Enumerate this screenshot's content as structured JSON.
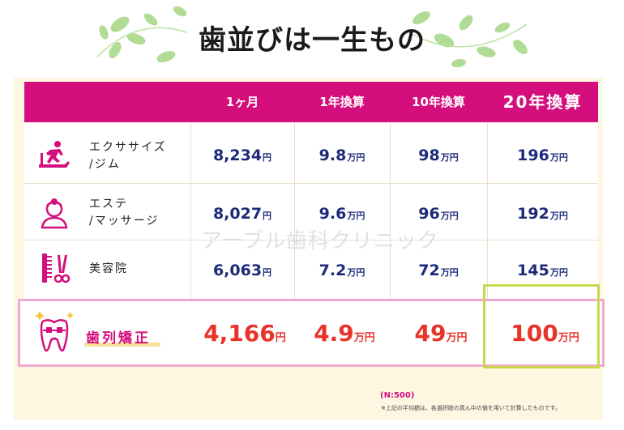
{
  "title": "歯並びは一生もの",
  "header": {
    "columns": [
      "1ヶ月",
      "1年換算",
      "10年換算",
      "20年換算"
    ]
  },
  "rows": [
    {
      "label_line1": "エクササイズ",
      "label_line2": "/ジム",
      "icon": "treadmill-icon",
      "cells": [
        {
          "num": "8,234",
          "unit": "円"
        },
        {
          "num": "9.8",
          "unit": "万円"
        },
        {
          "num": "98",
          "unit": "万円"
        },
        {
          "num": "196",
          "unit": "万円"
        }
      ]
    },
    {
      "label_line1": "エステ",
      "label_line2": "/マッサージ",
      "icon": "face-spa-icon",
      "cells": [
        {
          "num": "8,027",
          "unit": "円"
        },
        {
          "num": "9.6",
          "unit": "万円"
        },
        {
          "num": "96",
          "unit": "万円"
        },
        {
          "num": "192",
          "unit": "万円"
        }
      ]
    },
    {
      "label_line1": "美容院",
      "label_line2": "",
      "icon": "comb-scissors-icon",
      "cells": [
        {
          "num": "6,063",
          "unit": "円"
        },
        {
          "num": "7.2",
          "unit": "万円"
        },
        {
          "num": "72",
          "unit": "万円"
        },
        {
          "num": "145",
          "unit": "万円"
        }
      ]
    }
  ],
  "orthodontics": {
    "label": "歯列矯正",
    "icon": "tooth-braces-icon",
    "cells": [
      {
        "num": "4,166",
        "unit": "円"
      },
      {
        "num": "4.9",
        "unit": "万円"
      },
      {
        "num": "49",
        "unit": "万円"
      },
      {
        "num": "100",
        "unit": "万円"
      }
    ]
  },
  "watermark": "アーブル歯科クリニック",
  "sample": "(N:500)",
  "footnote": "※上記の平均額は、各選択肢の真ん中の値を用いて計算したものです。",
  "colors": {
    "header": "#d40f7d",
    "accent_red": "#e8332a",
    "navy": "#1d2a7a",
    "highlight": "#c7d84c",
    "panel": "#fdf6e1"
  }
}
